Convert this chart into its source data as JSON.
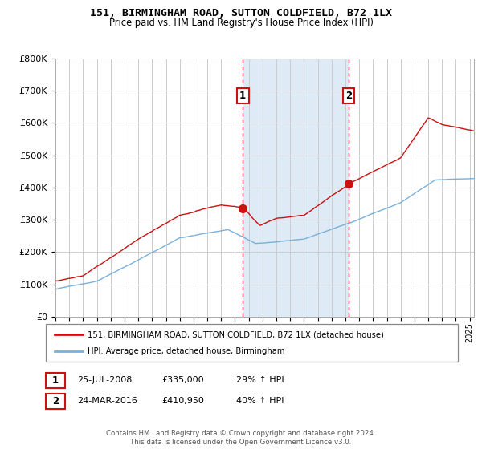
{
  "title": "151, BIRMINGHAM ROAD, SUTTON COLDFIELD, B72 1LX",
  "subtitle": "Price paid vs. HM Land Registry's House Price Index (HPI)",
  "legend_line1": "151, BIRMINGHAM ROAD, SUTTON COLDFIELD, B72 1LX (detached house)",
  "legend_line2": "HPI: Average price, detached house, Birmingham",
  "annotation1_label": "1",
  "annotation1_date": "25-JUL-2008",
  "annotation1_price": "£335,000",
  "annotation1_hpi": "29% ↑ HPI",
  "annotation1_year": 2008.57,
  "annotation1_value": 335000,
  "annotation2_label": "2",
  "annotation2_date": "24-MAR-2016",
  "annotation2_price": "£410,950",
  "annotation2_hpi": "40% ↑ HPI",
  "annotation2_year": 2016.23,
  "annotation2_value": 410950,
  "hpi_color": "#7ab0d8",
  "price_color": "#cc1111",
  "dot_color": "#cc1111",
  "vline_color": "#cc2222",
  "shade_color": "#deeaf5",
  "background_color": "#ffffff",
  "grid_color": "#cccccc",
  "ylim_max": 800000,
  "xlim_start": 1995.0,
  "xlim_end": 2025.3,
  "yticks": [
    0,
    100000,
    200000,
    300000,
    400000,
    500000,
    600000,
    700000,
    800000
  ],
  "ytick_labels": [
    "£0",
    "£100K",
    "£200K",
    "£300K",
    "£400K",
    "£500K",
    "£600K",
    "£700K",
    "£800K"
  ],
  "footer": "Contains HM Land Registry data © Crown copyright and database right 2024.\nThis data is licensed under the Open Government Licence v3.0."
}
